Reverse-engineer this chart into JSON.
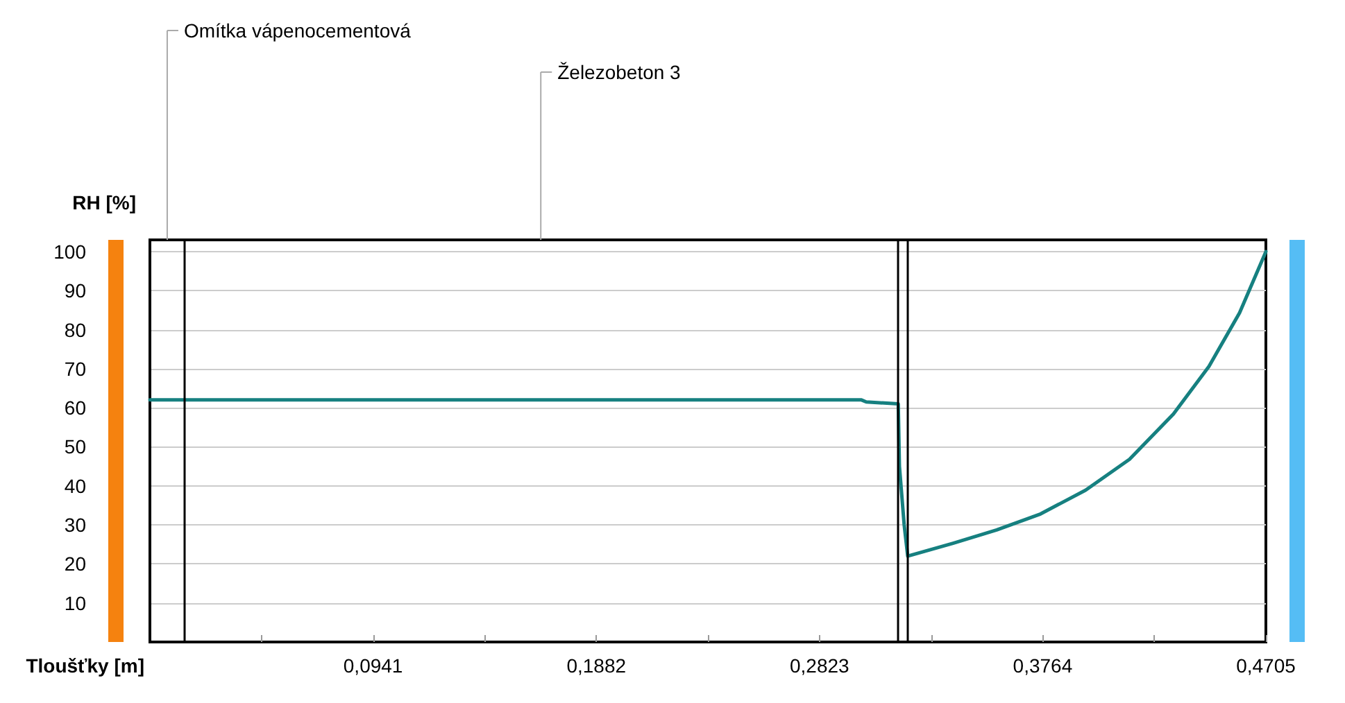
{
  "chart_data": {
    "type": "line",
    "xlabel": "Tloušťky [m]",
    "ylabel": "RH [%]",
    "xlim": [
      0,
      0.4705
    ],
    "ylim": [
      0,
      103
    ],
    "xticks": [
      {
        "value": 0.04705,
        "label": null
      },
      {
        "value": 0.0941,
        "label": "0,0941"
      },
      {
        "value": 0.14115,
        "label": null
      },
      {
        "value": 0.1882,
        "label": "0,1882"
      },
      {
        "value": 0.23525,
        "label": null
      },
      {
        "value": 0.2823,
        "label": "0,2823"
      },
      {
        "value": 0.32935,
        "label": null
      },
      {
        "value": 0.3764,
        "label": "0,3764"
      },
      {
        "value": 0.42345,
        "label": null
      },
      {
        "value": 0.4705,
        "label": "0,4705"
      }
    ],
    "yticks": [
      10,
      20,
      30,
      40,
      50,
      60,
      70,
      80,
      90,
      100
    ],
    "grid": "y",
    "marker": "none",
    "line_style": "solid",
    "series": [
      {
        "color": "#168080",
        "x": [
          0,
          0.0146,
          0.1,
          0.2,
          0.3,
          0.302,
          0.3155,
          0.316,
          0.318,
          0.3195,
          0.3386,
          0.357,
          0.3755,
          0.3945,
          0.413,
          0.4315,
          0.4465,
          0.4594,
          0.4705
        ],
        "values": [
          62,
          62,
          62,
          62,
          62,
          61.5,
          61,
          45,
          30,
          22,
          25.3,
          28.7,
          32.8,
          38.9,
          46.8,
          58.4,
          70.6,
          84.3,
          100
        ]
      }
    ],
    "ref_lines": [
      {
        "axis": "x",
        "value": 0.0146,
        "color": "#000000"
      },
      {
        "axis": "x",
        "value": 0.315,
        "color": "#000000"
      },
      {
        "axis": "x",
        "value": 0.3195,
        "color": "#000000"
      }
    ],
    "annotations": [
      "Omítka vápenocementová",
      "Železobeton 3"
    ]
  }
}
